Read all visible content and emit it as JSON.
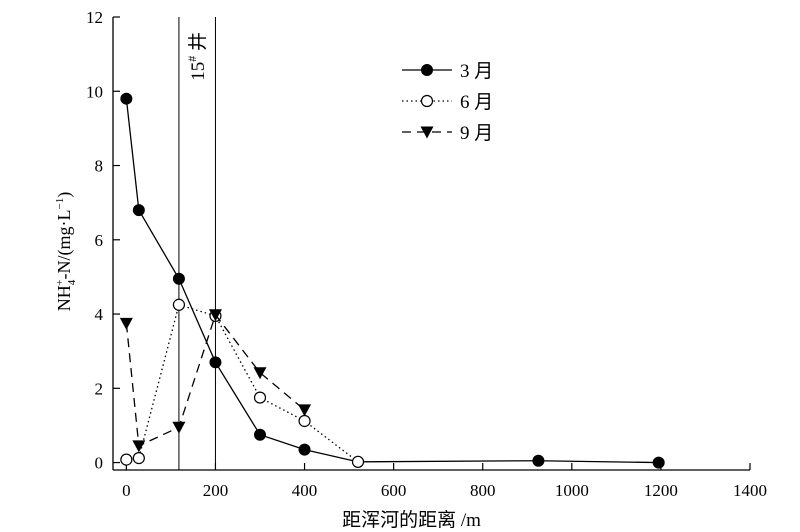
{
  "chart_data": {
    "type": "line",
    "xlabel": "距浑河的距离 /m",
    "ylabel": "NH4+-N/(mg·L-1)",
    "ylabel_parts": {
      "pre": "NH",
      "sub": "4",
      "sup": "+",
      "mid": "-N/(mg·L",
      "unit_sup": "−1",
      "post": ")"
    },
    "xlim": [
      -30,
      1400
    ],
    "ylim": [
      -0.2,
      12
    ],
    "xticks": [
      0,
      200,
      400,
      600,
      800,
      1000,
      1200,
      1400
    ],
    "yticks": [
      0,
      2,
      4,
      6,
      8,
      10,
      12
    ],
    "grid": false,
    "legend_position": "top-right",
    "annotation": {
      "text_main": "15",
      "text_sup": "#",
      "text_suffix": " 井",
      "vlines_x": [
        118,
        200
      ]
    },
    "series": [
      {
        "name": "3 月",
        "marker": "filled-circle",
        "line": "solid",
        "points": [
          [
            0,
            9.8
          ],
          [
            28,
            6.8
          ],
          [
            118,
            4.95
          ],
          [
            200,
            2.7
          ],
          [
            300,
            0.75
          ],
          [
            400,
            0.35
          ],
          [
            520,
            0.02
          ],
          [
            925,
            0.05
          ],
          [
            1195,
            0.0
          ]
        ]
      },
      {
        "name": "6 月",
        "marker": "open-circle",
        "line": "dotted",
        "points": [
          [
            0,
            0.08
          ],
          [
            28,
            0.12
          ],
          [
            118,
            4.25
          ],
          [
            200,
            3.95
          ],
          [
            300,
            1.75
          ],
          [
            400,
            1.12
          ],
          [
            520,
            0.02
          ]
        ]
      },
      {
        "name": "9 月",
        "marker": "filled-triangle-down",
        "line": "dashed",
        "points": [
          [
            0,
            3.75
          ],
          [
            28,
            0.45
          ],
          [
            118,
            0.95
          ],
          [
            200,
            3.98
          ],
          [
            300,
            2.42
          ],
          [
            400,
            1.42
          ]
        ]
      }
    ]
  }
}
